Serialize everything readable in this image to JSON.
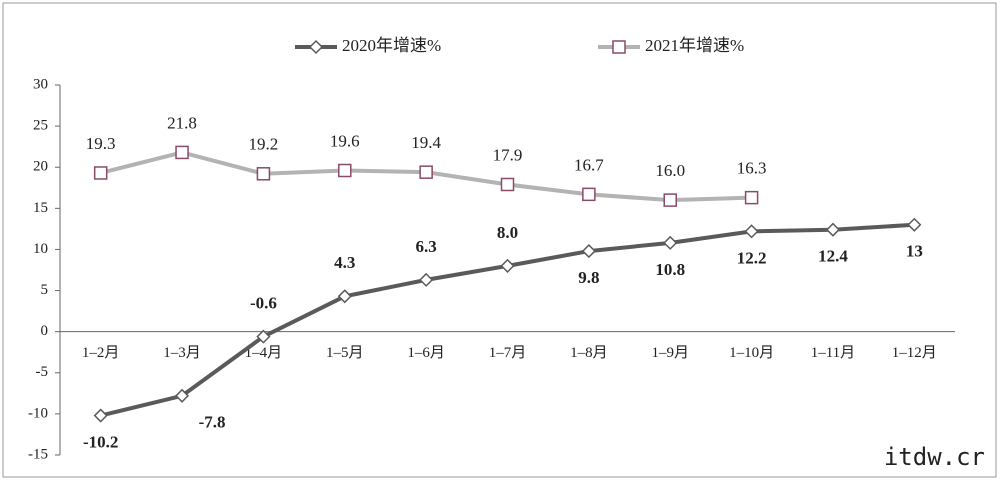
{
  "chart_data": {
    "type": "line",
    "categories": [
      "1–2月",
      "1–3月",
      "1–4月",
      "1–5月",
      "1–6月",
      "1–7月",
      "1–8月",
      "1–9月",
      "1–10月",
      "1–11月",
      "1–12月"
    ],
    "series": [
      {
        "name": "2020年增速%",
        "color": "#5a5a5a",
        "marker": "diamond",
        "values": [
          -10.2,
          -7.8,
          -0.6,
          4.3,
          6.3,
          8.0,
          9.8,
          10.8,
          12.2,
          12.4,
          13
        ],
        "value_labels": [
          "-10.2",
          "-7.8",
          "-0.6",
          "4.3",
          "6.3",
          "8.0",
          "9.8",
          "10.8",
          "12.2",
          "12.4",
          "13"
        ]
      },
      {
        "name": "2021年增速%",
        "color": "#b3b3b3",
        "marker": "square",
        "values": [
          19.3,
          21.8,
          19.2,
          19.6,
          19.4,
          17.9,
          16.7,
          16.0,
          16.3,
          null,
          null
        ],
        "value_labels": [
          "19.3",
          "21.8",
          "19.2",
          "19.6",
          "19.4",
          "17.9",
          "16.7",
          "16.0",
          "16.3",
          null,
          null
        ]
      }
    ],
    "ylim": [
      -15,
      30
    ],
    "yticks": [
      -15,
      -10,
      -5,
      0,
      5,
      10,
      15,
      20,
      25,
      30
    ],
    "watermark": "itdw.cr"
  }
}
